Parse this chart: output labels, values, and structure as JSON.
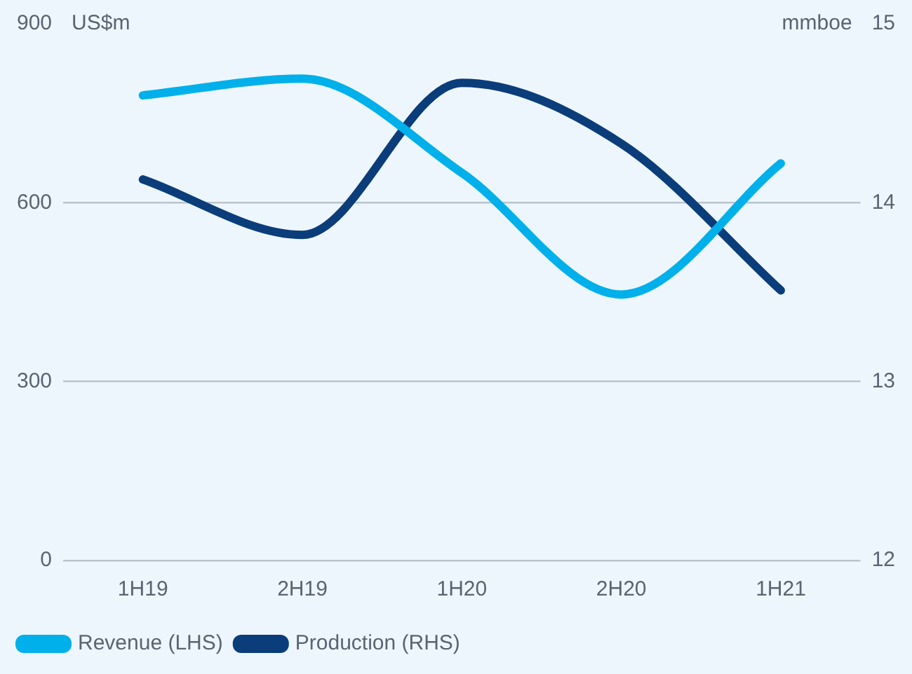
{
  "chart_data": {
    "type": "line",
    "ylabel": "US$m",
    "y2label": "mmboe",
    "categories": [
      "1H19",
      "2H19",
      "1H20",
      "2H20",
      "1H21"
    ],
    "series": [
      {
        "name": "Revenue (LHS)",
        "color": "#00b0ea",
        "values": [
          780,
          808,
          650,
          446,
          666
        ]
      },
      {
        "name": "Production (RHS)",
        "color": "#0a3d7a",
        "axis": "y2",
        "values": [
          14.13,
          13.82,
          14.67,
          14.33,
          13.51
        ]
      }
    ],
    "ylim": [
      0,
      900
    ],
    "yticks": [
      0,
      300,
      600,
      900
    ],
    "y2lim": [
      12,
      15
    ],
    "y2ticks": [
      12,
      13,
      14,
      15
    ],
    "grid": "y",
    "legend": "bottom",
    "marker": "none",
    "line_style": "solid"
  }
}
